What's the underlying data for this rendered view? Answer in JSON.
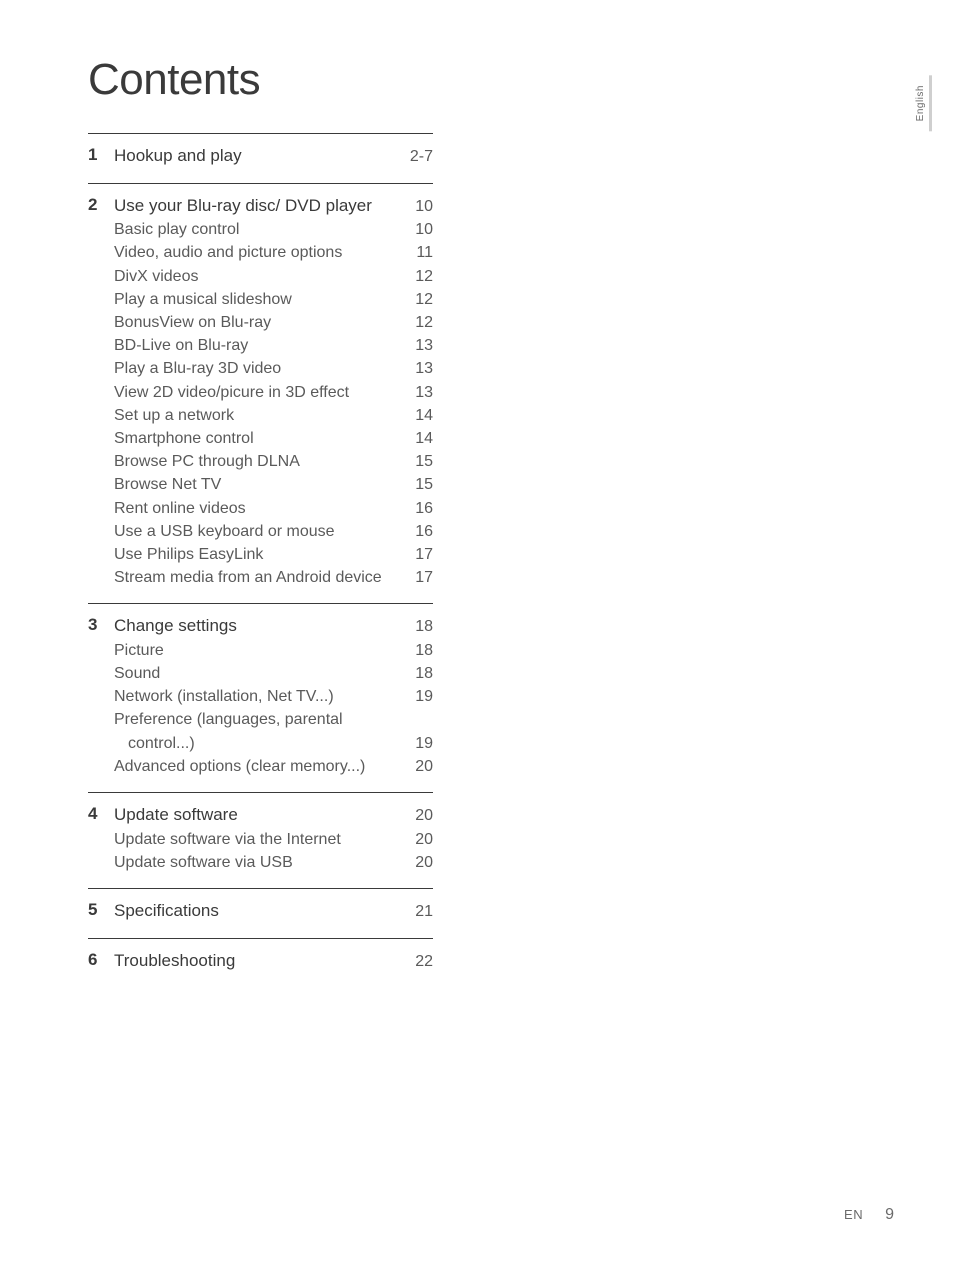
{
  "heading": "Contents",
  "side_tab": "English",
  "footer": {
    "lang": "EN",
    "page": "9"
  },
  "sections": [
    {
      "num": "1",
      "title": "Hookup and play",
      "page": "2-7",
      "items": []
    },
    {
      "num": "2",
      "title": "Use your Blu-ray disc/ DVD player",
      "page": "10",
      "items": [
        {
          "label": "Basic play control",
          "page": "10"
        },
        {
          "label": "Video, audio and picture options",
          "page": "11"
        },
        {
          "label": "DivX videos",
          "page": "12"
        },
        {
          "label": "Play a musical slideshow",
          "page": "12"
        },
        {
          "label": "BonusView on Blu-ray",
          "page": "12"
        },
        {
          "label": "BD-Live on Blu-ray",
          "page": "13"
        },
        {
          "label": "Play a Blu-ray 3D video",
          "page": "13"
        },
        {
          "label": "View 2D video/picure in 3D effect",
          "page": "13"
        },
        {
          "label": "Set up a network",
          "page": "14"
        },
        {
          "label": "Smartphone control",
          "page": "14"
        },
        {
          "label": "Browse PC through DLNA",
          "page": "15"
        },
        {
          "label": "Browse Net TV",
          "page": "15"
        },
        {
          "label": "Rent online videos",
          "page": "16"
        },
        {
          "label": "Use a USB keyboard or mouse",
          "page": "16"
        },
        {
          "label": "Use Philips EasyLink",
          "page": "17"
        },
        {
          "label": "Stream media from an Android device",
          "page": "17"
        }
      ]
    },
    {
      "num": "3",
      "title": "Change settings",
      "page": "18",
      "items": [
        {
          "label": "Picture",
          "page": "18"
        },
        {
          "label": "Sound",
          "page": "18"
        },
        {
          "label": "Network (installation, Net TV...)",
          "page": "19"
        },
        {
          "label": "Preference (languages, parental",
          "page": ""
        },
        {
          "label": "control...)",
          "page": "19",
          "indent": true
        },
        {
          "label": "Advanced options (clear memory...)",
          "page": "20"
        }
      ]
    },
    {
      "num": "4",
      "title": "Update software",
      "page": "20",
      "items": [
        {
          "label": "Update software via the Internet",
          "page": "20"
        },
        {
          "label": "Update software via USB",
          "page": "20"
        }
      ]
    },
    {
      "num": "5",
      "title": "Specifications",
      "page": "21",
      "items": []
    },
    {
      "num": "6",
      "title": "Troubleshooting",
      "page": "22",
      "items": []
    }
  ]
}
